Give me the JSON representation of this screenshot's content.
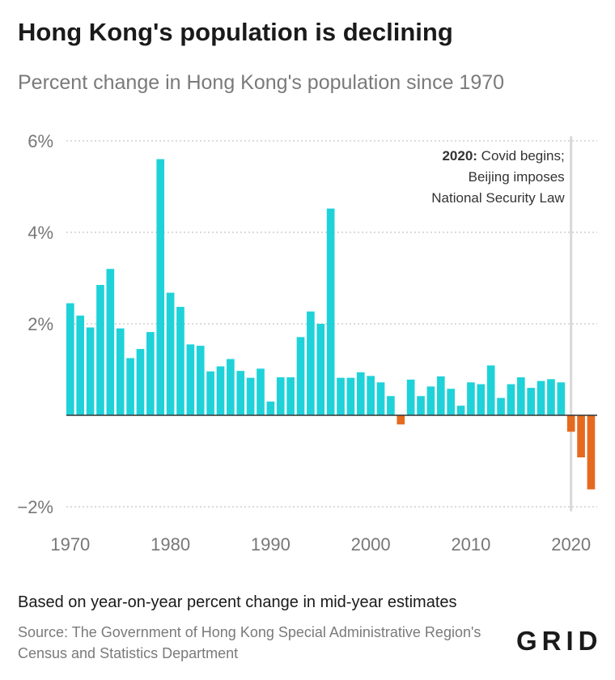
{
  "header": {
    "title": "Hong Kong's population is declining",
    "subtitle": "Percent change in Hong Kong's population since 1970"
  },
  "footer": {
    "note": "Based on year-on-year percent change in mid-year estimates",
    "source": "Source: The Government of Hong Kong Special Administrative Region's Census and Statistics Department",
    "logo": "GRID"
  },
  "colors": {
    "positive": "#1fd2d9",
    "negative": "#e56a1f",
    "grid": "#cfcfcf",
    "marker": "#d8d8d8"
  },
  "chart_data": {
    "type": "bar",
    "title": "Hong Kong's population is declining",
    "subtitle": "Percent change in Hong Kong's population since 1970",
    "xlabel": "",
    "ylabel": "",
    "x": [
      1970,
      1971,
      1972,
      1973,
      1974,
      1975,
      1976,
      1977,
      1978,
      1979,
      1980,
      1981,
      1982,
      1983,
      1984,
      1985,
      1986,
      1987,
      1988,
      1989,
      1990,
      1991,
      1992,
      1993,
      1994,
      1995,
      1996,
      1997,
      1998,
      1999,
      2000,
      2001,
      2002,
      2003,
      2004,
      2005,
      2006,
      2007,
      2008,
      2009,
      2010,
      2011,
      2012,
      2013,
      2014,
      2015,
      2016,
      2017,
      2018,
      2019,
      2020,
      2021,
      2022
    ],
    "values": [
      2.45,
      2.18,
      1.92,
      2.85,
      3.2,
      1.9,
      1.25,
      1.45,
      1.82,
      5.6,
      2.68,
      2.37,
      1.55,
      1.52,
      0.96,
      1.07,
      1.23,
      0.97,
      0.82,
      1.02,
      0.3,
      0.83,
      0.83,
      1.71,
      2.27,
      2.0,
      4.52,
      0.82,
      0.82,
      0.94,
      0.86,
      0.72,
      0.42,
      -0.2,
      0.78,
      0.42,
      0.63,
      0.85,
      0.58,
      0.21,
      0.72,
      0.68,
      1.09,
      0.38,
      0.68,
      0.83,
      0.6,
      0.75,
      0.79,
      0.72,
      -0.36,
      -0.92,
      -1.62
    ],
    "ylim": [
      -2.3,
      6.3
    ],
    "yticks": [
      6,
      4,
      2,
      0,
      -2
    ],
    "ytick_labels": [
      "6%",
      "4%",
      "2%",
      "",
      "−2%"
    ],
    "xticks": [
      1970,
      1980,
      1990,
      2000,
      2010,
      2020
    ],
    "xtick_labels": [
      "1970",
      "1980",
      "1990",
      "2000",
      "2010",
      "2020"
    ],
    "grid": true,
    "annotation": {
      "x": 2020,
      "bold": "2020:",
      "text_line1": " Covid begins;",
      "text_line2": "Beijing imposes",
      "text_line3": "National Security Law"
    }
  }
}
